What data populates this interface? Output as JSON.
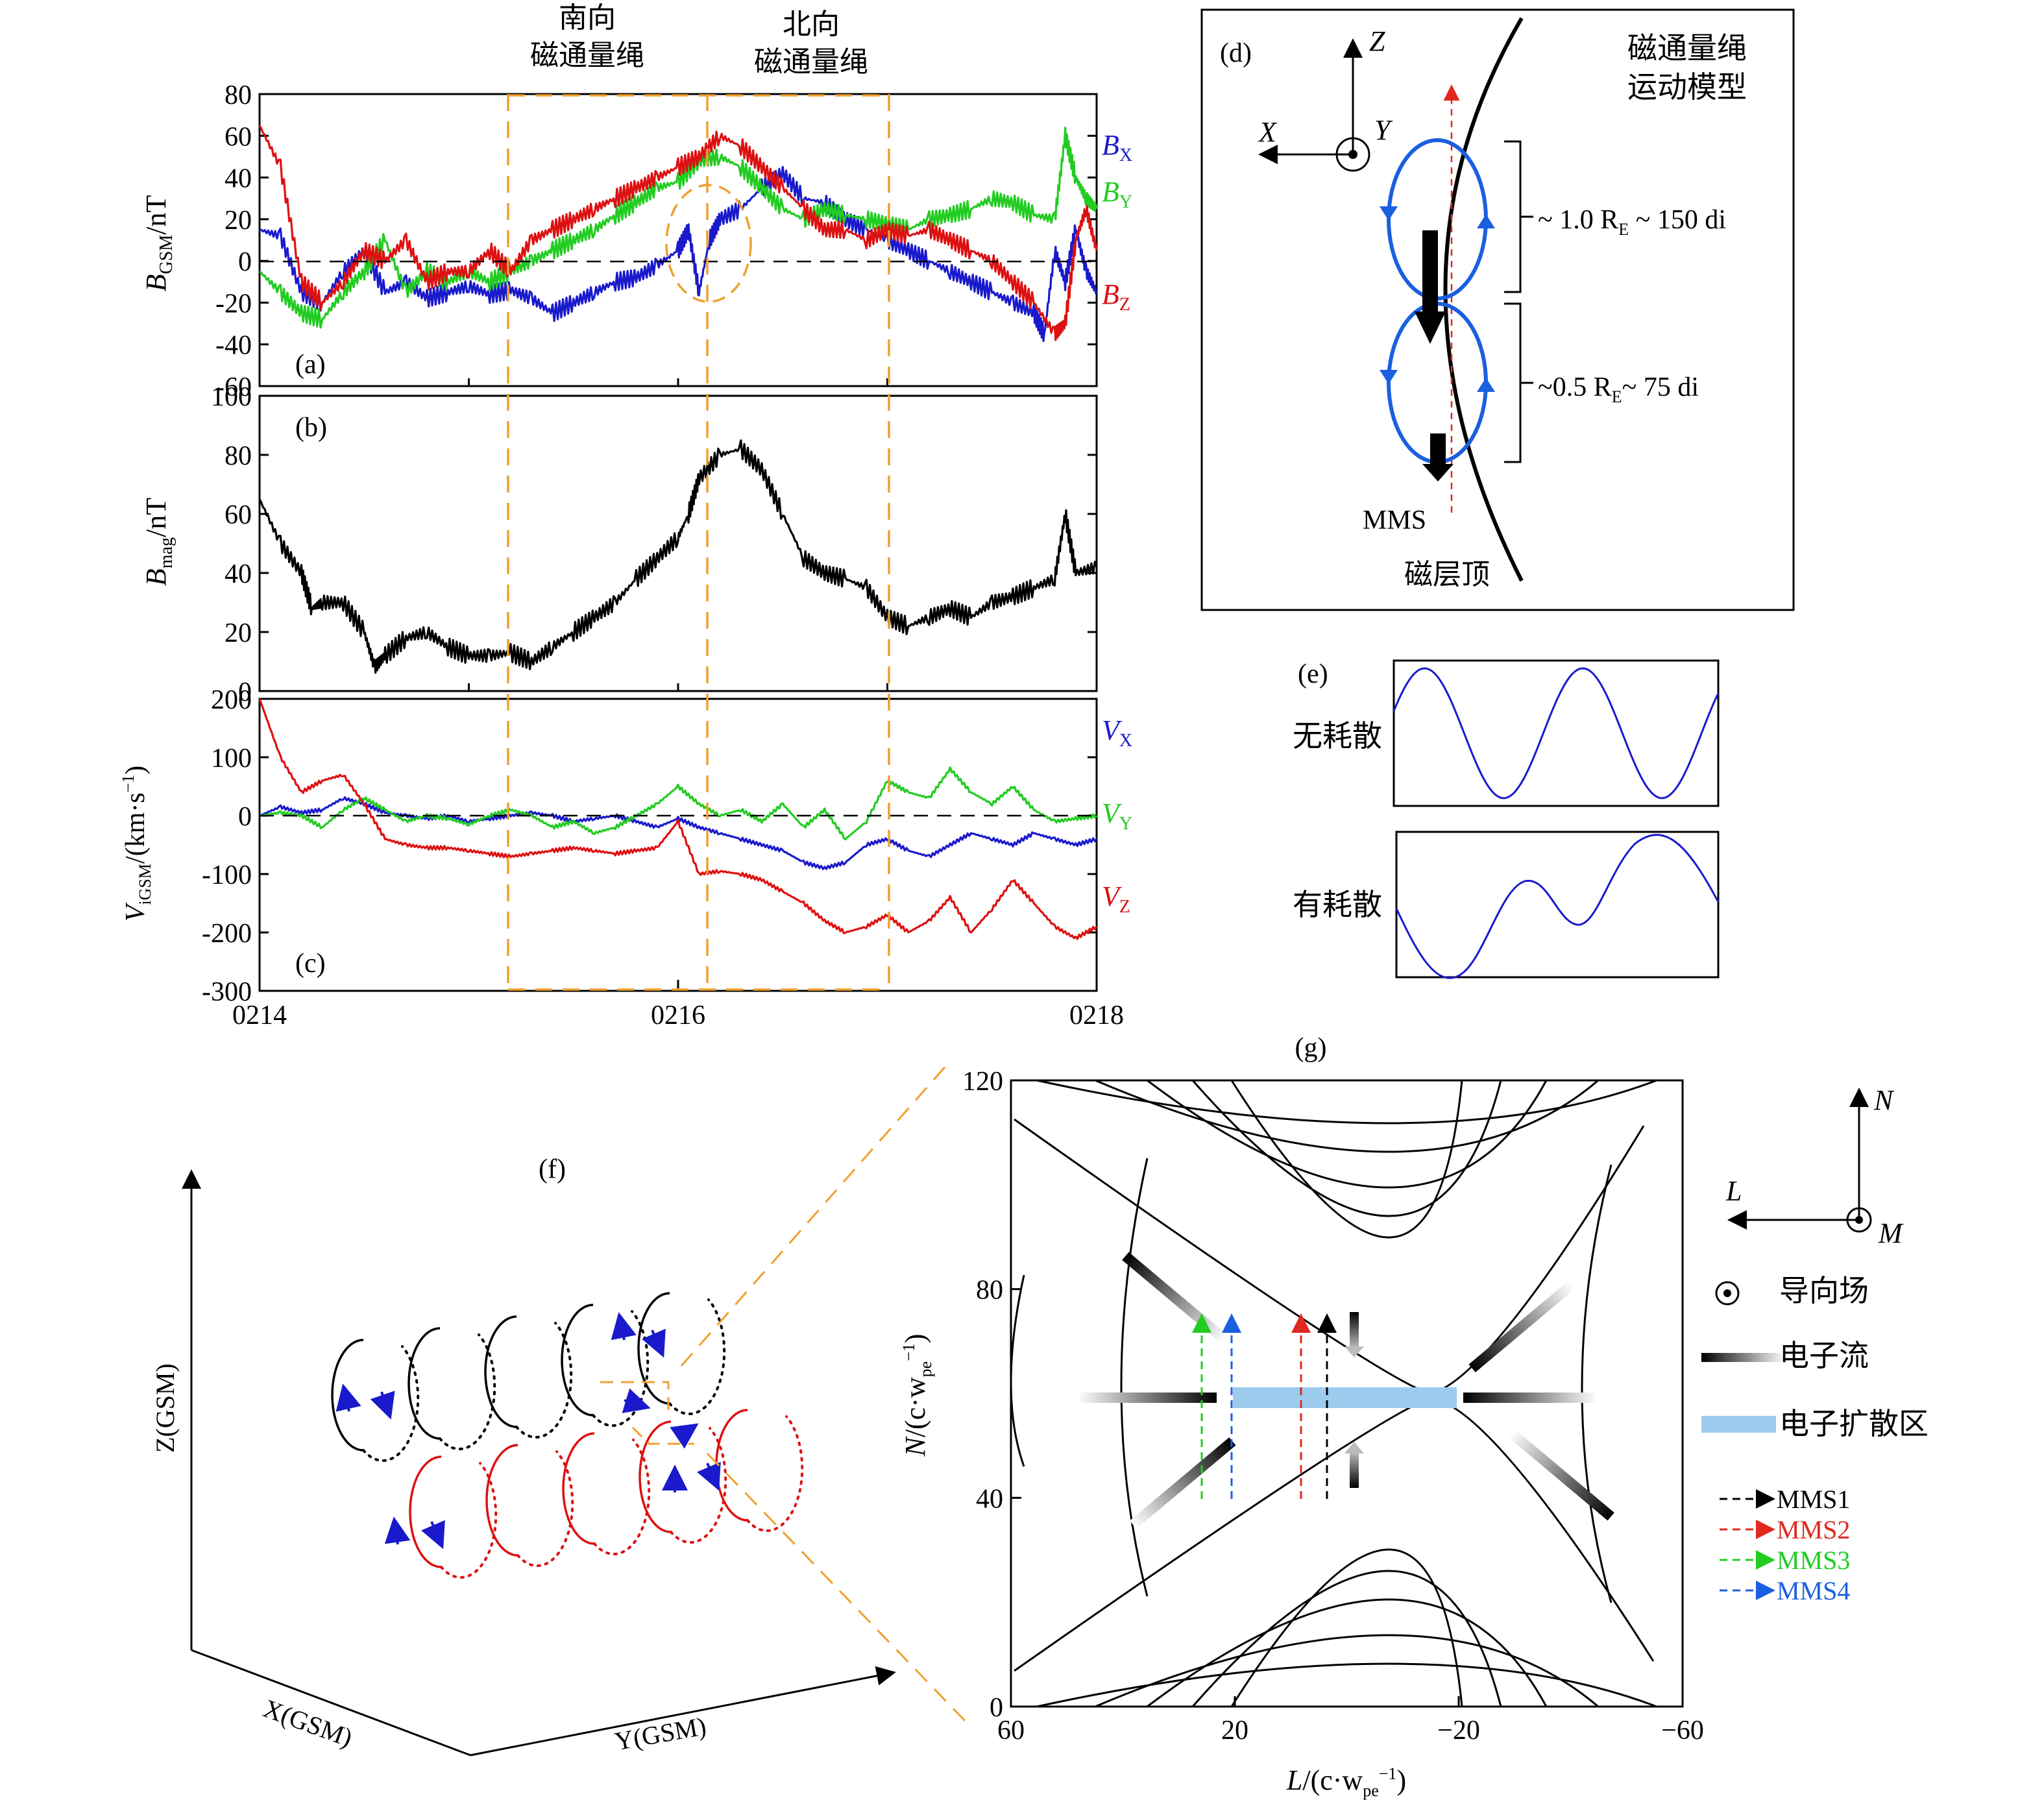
{
  "top_labels": {
    "south_rope": [
      "南向",
      "磁通量绳"
    ],
    "north_rope": [
      "北向",
      "磁通量绳"
    ]
  },
  "chart_data": [
    {
      "panel": "(a)",
      "type": "line",
      "ylabel": "B_GSM/nT",
      "ylim": [
        -60,
        80
      ],
      "yticks": [
        "80",
        "60",
        "40",
        "20",
        "0",
        "-20",
        "-40",
        "-60"
      ],
      "xlim": [
        0,
        4
      ],
      "series": [
        {
          "name": "B_X",
          "color": "#1a1acc",
          "x": [
            0,
            0.1,
            0.2,
            0.3,
            0.4,
            0.5,
            0.6,
            0.7,
            0.8,
            0.9,
            1.0,
            1.1,
            1.2,
            1.3,
            1.4,
            1.5,
            1.6,
            1.7,
            1.8,
            1.9,
            2.0,
            2.05,
            2.1,
            2.15,
            2.2,
            2.3,
            2.4,
            2.5,
            2.6,
            2.7,
            2.8,
            2.9,
            3.0,
            3.1,
            3.2,
            3.3,
            3.4,
            3.5,
            3.6,
            3.7,
            3.75,
            3.8,
            3.85,
            3.9,
            3.95,
            4.0
          ],
          "y": [
            15,
            12,
            -15,
            -20,
            -5,
            5,
            -15,
            -10,
            -18,
            -15,
            -12,
            -16,
            -14,
            -18,
            -25,
            -20,
            -15,
            -10,
            -8,
            -2,
            5,
            15,
            -15,
            10,
            20,
            25,
            35,
            42,
            30,
            28,
            20,
            15,
            10,
            5,
            0,
            -5,
            -10,
            -15,
            -20,
            -25,
            -35,
            5,
            -10,
            15,
            -5,
            -15
          ]
        },
        {
          "name": "B_Y",
          "color": "#22cc22",
          "x": [
            0,
            0.1,
            0.2,
            0.3,
            0.4,
            0.5,
            0.6,
            0.7,
            0.8,
            0.9,
            1.0,
            1.1,
            1.2,
            1.3,
            1.4,
            1.5,
            1.6,
            1.7,
            1.8,
            1.9,
            2.0,
            2.1,
            2.2,
            2.3,
            2.4,
            2.5,
            2.6,
            2.7,
            2.8,
            2.9,
            3.0,
            3.1,
            3.2,
            3.3,
            3.4,
            3.5,
            3.6,
            3.7,
            3.8,
            3.85,
            3.9,
            3.95,
            4.0
          ],
          "y": [
            -5,
            -15,
            -25,
            -28,
            -15,
            -5,
            10,
            -15,
            -5,
            -10,
            -5,
            -10,
            -5,
            0,
            5,
            10,
            15,
            22,
            28,
            35,
            38,
            48,
            50,
            45,
            35,
            25,
            20,
            25,
            22,
            20,
            18,
            15,
            20,
            22,
            25,
            30,
            28,
            22,
            20,
            60,
            40,
            30,
            25
          ]
        },
        {
          "name": "B_Z",
          "color": "#dd1111",
          "x": [
            0,
            0.1,
            0.2,
            0.3,
            0.4,
            0.5,
            0.6,
            0.7,
            0.8,
            0.9,
            1.0,
            1.1,
            1.2,
            1.3,
            1.4,
            1.5,
            1.6,
            1.7,
            1.8,
            1.9,
            2.0,
            2.1,
            2.2,
            2.3,
            2.4,
            2.5,
            2.6,
            2.7,
            2.8,
            2.9,
            3.0,
            3.1,
            3.2,
            3.3,
            3.4,
            3.5,
            3.6,
            3.7,
            3.8,
            3.85,
            3.9,
            3.95,
            4.0
          ],
          "y": [
            65,
            45,
            -10,
            -20,
            -10,
            5,
            0,
            10,
            -10,
            -5,
            -5,
            5,
            -5,
            10,
            15,
            20,
            25,
            30,
            35,
            40,
            45,
            50,
            60,
            55,
            45,
            35,
            25,
            15,
            15,
            10,
            15,
            12,
            15,
            10,
            5,
            0,
            -10,
            -20,
            -35,
            -30,
            10,
            25,
            5
          ]
        }
      ],
      "series_labels": {
        "x": "B",
        "x_sub": "X",
        "y": "B",
        "y_sub": "Y",
        "z": "B",
        "z_sub": "Z"
      }
    },
    {
      "panel": "(b)",
      "type": "line",
      "ylabel": "B_mag/nT",
      "ylim": [
        0,
        100
      ],
      "yticks": [
        "100",
        "80",
        "60",
        "40",
        "20",
        "0"
      ],
      "xlim": [
        0,
        4
      ],
      "series": [
        {
          "name": "B_mag",
          "color": "#000000",
          "x": [
            0,
            0.1,
            0.2,
            0.25,
            0.3,
            0.4,
            0.5,
            0.55,
            0.6,
            0.7,
            0.8,
            0.9,
            1.0,
            1.1,
            1.2,
            1.3,
            1.4,
            1.5,
            1.6,
            1.7,
            1.8,
            1.9,
            2.0,
            2.05,
            2.1,
            2.2,
            2.3,
            2.4,
            2.5,
            2.6,
            2.7,
            2.8,
            2.9,
            3.0,
            3.1,
            3.2,
            3.3,
            3.4,
            3.5,
            3.6,
            3.7,
            3.8,
            3.85,
            3.9,
            4.0
          ],
          "y": [
            65,
            50,
            40,
            28,
            30,
            30,
            20,
            8,
            12,
            18,
            20,
            15,
            12,
            12,
            13,
            10,
            15,
            20,
            25,
            30,
            38,
            45,
            52,
            60,
            72,
            80,
            82,
            75,
            60,
            45,
            40,
            38,
            35,
            25,
            22,
            25,
            28,
            25,
            30,
            32,
            35,
            38,
            60,
            40,
            42
          ]
        }
      ]
    },
    {
      "panel": "(c)",
      "type": "line",
      "ylabel": "V_iGSM/(km·s⁻¹)",
      "ylim": [
        -300,
        200
      ],
      "yticks": [
        "200",
        "100",
        "0",
        "-100",
        "-200",
        "-300"
      ],
      "xlim": [
        0,
        4
      ],
      "xticks": [
        "0214",
        "0216",
        "0218"
      ],
      "series": [
        {
          "name": "V_X",
          "color": "#1a1acc",
          "x": [
            0,
            0.1,
            0.2,
            0.3,
            0.4,
            0.5,
            0.6,
            0.7,
            0.8,
            0.9,
            1.0,
            1.1,
            1.2,
            1.3,
            1.4,
            1.5,
            1.6,
            1.7,
            1.8,
            1.9,
            2.0,
            2.1,
            2.2,
            2.3,
            2.4,
            2.5,
            2.6,
            2.7,
            2.8,
            2.9,
            3.0,
            3.1,
            3.2,
            3.3,
            3.4,
            3.5,
            3.6,
            3.7,
            3.8,
            3.9,
            4.0
          ],
          "y": [
            0,
            15,
            5,
            10,
            30,
            20,
            5,
            0,
            -5,
            0,
            -10,
            -5,
            0,
            5,
            0,
            -10,
            -5,
            0,
            -10,
            -20,
            -5,
            -20,
            -30,
            -40,
            -50,
            -60,
            -80,
            -90,
            -80,
            -50,
            -40,
            -60,
            -70,
            -50,
            -30,
            -40,
            -50,
            -30,
            -40,
            -50,
            -40
          ]
        },
        {
          "name": "V_Y",
          "color": "#22cc22",
          "x": [
            0,
            0.1,
            0.2,
            0.3,
            0.4,
            0.5,
            0.6,
            0.7,
            0.8,
            0.9,
            1.0,
            1.1,
            1.2,
            1.3,
            1.4,
            1.5,
            1.6,
            1.7,
            1.8,
            1.9,
            2.0,
            2.1,
            2.2,
            2.3,
            2.4,
            2.5,
            2.6,
            2.7,
            2.8,
            2.9,
            3.0,
            3.1,
            3.2,
            3.3,
            3.4,
            3.5,
            3.6,
            3.7,
            3.8,
            3.9,
            4.0
          ],
          "y": [
            0,
            5,
            0,
            -20,
            10,
            30,
            10,
            -10,
            0,
            -5,
            -15,
            0,
            10,
            0,
            -20,
            -10,
            -30,
            -20,
            0,
            20,
            50,
            20,
            0,
            10,
            -10,
            20,
            -20,
            10,
            -40,
            -10,
            60,
            40,
            30,
            80,
            40,
            20,
            50,
            10,
            -10,
            -5,
            0
          ]
        },
        {
          "name": "V_Z",
          "color": "#dd1111",
          "x": [
            0,
            0.1,
            0.2,
            0.3,
            0.4,
            0.5,
            0.6,
            0.7,
            0.8,
            0.9,
            1.0,
            1.1,
            1.2,
            1.3,
            1.4,
            1.5,
            1.6,
            1.7,
            1.8,
            1.9,
            2.0,
            2.1,
            2.2,
            2.3,
            2.4,
            2.5,
            2.6,
            2.7,
            2.8,
            2.9,
            3.0,
            3.1,
            3.2,
            3.3,
            3.4,
            3.5,
            3.6,
            3.7,
            3.8,
            3.9,
            4.0
          ],
          "y": [
            200,
            100,
            40,
            60,
            70,
            20,
            -40,
            -50,
            -55,
            -55,
            -60,
            -65,
            -70,
            -65,
            -60,
            -55,
            -60,
            -65,
            -60,
            -55,
            -10,
            -100,
            -95,
            -100,
            -110,
            -130,
            -150,
            -180,
            -200,
            -190,
            -170,
            -200,
            -180,
            -140,
            -200,
            -160,
            -110,
            -150,
            -190,
            -210,
            -190
          ]
        }
      ],
      "series_labels": {
        "x": "V",
        "x_sub": "X",
        "y": "V",
        "y_sub": "Y",
        "z": "V",
        "z_sub": "Z"
      }
    },
    {
      "panel": "(g)",
      "type": "contour",
      "xlabel": "L/(c·w_pe⁻¹)",
      "ylabel": "N/(c·w_pe⁻¹)",
      "xlim": [
        60,
        -60
      ],
      "ylim": [
        0,
        120
      ],
      "xticks": [
        "60",
        "20",
        "−20",
        "−60"
      ],
      "yticks": [
        "120",
        "80",
        "40",
        "0"
      ]
    }
  ],
  "panel_a": {
    "label": "(a)",
    "ylabel_main": "B",
    "ylabel_sub": "GSM",
    "ylabel_unit": "/nT"
  },
  "panel_b": {
    "label": "(b)",
    "ylabel_main": "B",
    "ylabel_sub": "mag",
    "ylabel_unit": "/nT"
  },
  "panel_c": {
    "label": "(c)",
    "ylabel_main": "V",
    "ylabel_sub": "iGSM",
    "ylabel_unit": "/(km·s",
    "ylabel_exp": "−1",
    "ylabel_close": ")"
  },
  "panel_d": {
    "label": "(d)",
    "title": [
      "磁通量绳",
      "运动模型"
    ],
    "axes": {
      "z": "Z",
      "x": "X",
      "y": "Y"
    },
    "size1": "~ 1.0 R",
    "size1_sub": "E",
    "size1_tail": " ~ 150 di",
    "size2": "~0.5 R",
    "size2_sub": "E",
    "size2_tail": "~ 75 di",
    "mms": "MMS",
    "magnetopause": "磁层顶"
  },
  "panel_e": {
    "label": "(e)",
    "no_dissipation": "无耗散",
    "dissipation": "有耗散"
  },
  "panel_f": {
    "label": "(f)",
    "z_axis": "Z(GSM)",
    "x_axis": "X(GSM)",
    "y_axis": "Y(GSM)"
  },
  "panel_g": {
    "label": "(g)",
    "axes": {
      "n": "N",
      "l": "L",
      "m": "M"
    },
    "legend": {
      "guide_field": "导向场",
      "electron_flow": "电子流",
      "diffusion_region": "电子扩散区",
      "mms": [
        {
          "name": "MMS1",
          "color": "#000000"
        },
        {
          "name": "MMS2",
          "color": "#e0281e"
        },
        {
          "name": "MMS3",
          "color": "#22cc22"
        },
        {
          "name": "MMS4",
          "color": "#1a5fe0"
        }
      ]
    }
  },
  "colors": {
    "orange": "#f0a030",
    "blue": "#1a1acc",
    "green": "#22cc22",
    "red": "#dd1111",
    "light_blue": "#9ccbee"
  }
}
